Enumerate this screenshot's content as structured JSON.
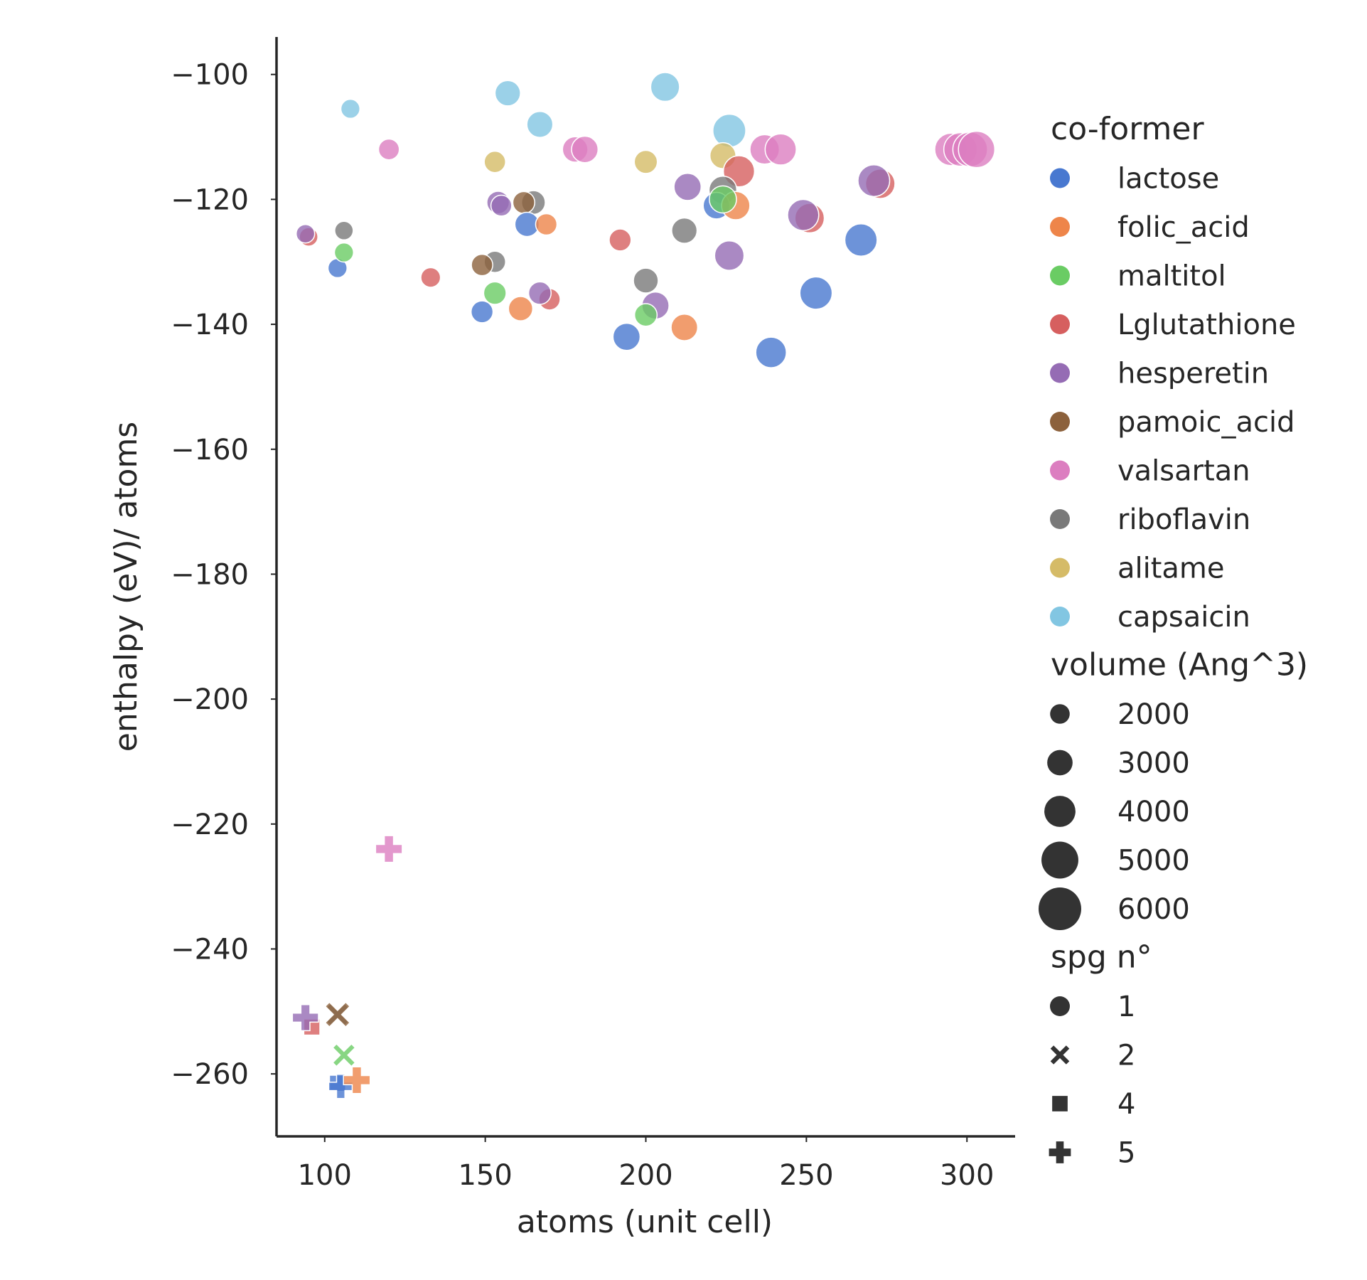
{
  "chart_data": {
    "type": "scatter",
    "xlabel": "atoms (unit cell)",
    "ylabel": "enthalpy (eV)/ atoms",
    "xlim": [
      85,
      315
    ],
    "ylim": [
      -270,
      -94
    ],
    "xticks": [
      100,
      150,
      200,
      250,
      300
    ],
    "yticks": [
      -100,
      -120,
      -140,
      -160,
      -180,
      -200,
      -220,
      -240,
      -260
    ],
    "grid": false,
    "legend_position": "right",
    "legend": {
      "hue_title": "co-former",
      "hue": [
        {
          "name": "lactose",
          "color": "#4878d0"
        },
        {
          "name": "folic_acid",
          "color": "#ee854a"
        },
        {
          "name": "maltitol",
          "color": "#6acc64"
        },
        {
          "name": "Lglutathione",
          "color": "#d65f5f"
        },
        {
          "name": "hesperetin",
          "color": "#956cb4"
        },
        {
          "name": "pamoic_acid",
          "color": "#8c613c"
        },
        {
          "name": "valsartan",
          "color": "#dc7ec0"
        },
        {
          "name": "riboflavin",
          "color": "#797979"
        },
        {
          "name": "alitame",
          "color": "#d5bb67"
        },
        {
          "name": "capsaicin",
          "color": "#82c6e2"
        }
      ],
      "size_title": "volume (Ang^3)",
      "sizes": [
        2000,
        3000,
        4000,
        5000,
        6000
      ],
      "style_title": "spg n°",
      "styles": [
        {
          "label": "1",
          "marker": "circle"
        },
        {
          "label": "2",
          "marker": "x"
        },
        {
          "label": "4",
          "marker": "square"
        },
        {
          "label": "5",
          "marker": "plus"
        }
      ]
    },
    "points": [
      {
        "x": 108,
        "y": -105.5,
        "cf": "capsaicin",
        "v": 1900,
        "spg": 1
      },
      {
        "x": 157,
        "y": -103,
        "cf": "capsaicin",
        "v": 3000,
        "spg": 1
      },
      {
        "x": 167,
        "y": -108,
        "cf": "capsaicin",
        "v": 3100,
        "spg": 1
      },
      {
        "x": 206,
        "y": -102,
        "cf": "capsaicin",
        "v": 3600,
        "spg": 1
      },
      {
        "x": 226,
        "y": -109,
        "cf": "capsaicin",
        "v": 4300,
        "spg": 1
      },
      {
        "x": 120,
        "y": -112,
        "cf": "valsartan",
        "v": 2200,
        "spg": 1
      },
      {
        "x": 178,
        "y": -112,
        "cf": "valsartan",
        "v": 3000,
        "spg": 1
      },
      {
        "x": 181,
        "y": -112,
        "cf": "valsartan",
        "v": 3200,
        "spg": 1
      },
      {
        "x": 237,
        "y": -112,
        "cf": "valsartan",
        "v": 3700,
        "spg": 1
      },
      {
        "x": 242,
        "y": -112,
        "cf": "valsartan",
        "v": 4000,
        "spg": 1
      },
      {
        "x": 295,
        "y": -112,
        "cf": "valsartan",
        "v": 4200,
        "spg": 1
      },
      {
        "x": 298,
        "y": -112,
        "cf": "valsartan",
        "v": 4400,
        "spg": 1
      },
      {
        "x": 301,
        "y": -112,
        "cf": "valsartan",
        "v": 4600,
        "spg": 1
      },
      {
        "x": 303,
        "y": -112,
        "cf": "valsartan",
        "v": 4900,
        "spg": 1
      },
      {
        "x": 153,
        "y": -114,
        "cf": "alitame",
        "v": 2300,
        "spg": 1
      },
      {
        "x": 200,
        "y": -114,
        "cf": "alitame",
        "v": 2600,
        "spg": 1
      },
      {
        "x": 224,
        "y": -113,
        "cf": "alitame",
        "v": 3100,
        "spg": 1
      },
      {
        "x": 95,
        "y": -126,
        "cf": "Lglutathione",
        "v": 1800,
        "spg": 1
      },
      {
        "x": 133,
        "y": -132.5,
        "cf": "Lglutathione",
        "v": 2000,
        "spg": 1
      },
      {
        "x": 192,
        "y": -126.5,
        "cf": "Lglutathione",
        "v": 2400,
        "spg": 1
      },
      {
        "x": 170,
        "y": -136,
        "cf": "Lglutathione",
        "v": 2300,
        "spg": 1
      },
      {
        "x": 229,
        "y": -115.5,
        "cf": "Lglutathione",
        "v": 4000,
        "spg": 1
      },
      {
        "x": 251,
        "y": -123,
        "cf": "Lglutathione",
        "v": 3700,
        "spg": 1
      },
      {
        "x": 273,
        "y": -117.5,
        "cf": "Lglutathione",
        "v": 3700,
        "spg": 1
      },
      {
        "x": 94,
        "y": -125.5,
        "cf": "hesperetin",
        "v": 1800,
        "spg": 1
      },
      {
        "x": 154,
        "y": -120.5,
        "cf": "hesperetin",
        "v": 2500,
        "spg": 1
      },
      {
        "x": 155,
        "y": -121,
        "cf": "hesperetin",
        "v": 2200,
        "spg": 1
      },
      {
        "x": 167,
        "y": -135,
        "cf": "hesperetin",
        "v": 2500,
        "spg": 1
      },
      {
        "x": 203,
        "y": -137,
        "cf": "hesperetin",
        "v": 3300,
        "spg": 1
      },
      {
        "x": 213,
        "y": -118,
        "cf": "hesperetin",
        "v": 3300,
        "spg": 1
      },
      {
        "x": 226,
        "y": -129,
        "cf": "hesperetin",
        "v": 3700,
        "spg": 1
      },
      {
        "x": 249,
        "y": -122.5,
        "cf": "hesperetin",
        "v": 4000,
        "spg": 1
      },
      {
        "x": 271,
        "y": -117,
        "cf": "hesperetin",
        "v": 4100,
        "spg": 1
      },
      {
        "x": 106,
        "y": -125,
        "cf": "riboflavin",
        "v": 1800,
        "spg": 1
      },
      {
        "x": 153,
        "y": -130,
        "cf": "riboflavin",
        "v": 2300,
        "spg": 1
      },
      {
        "x": 165,
        "y": -120.5,
        "cf": "riboflavin",
        "v": 2700,
        "spg": 1
      },
      {
        "x": 200,
        "y": -133,
        "cf": "riboflavin",
        "v": 2900,
        "spg": 1
      },
      {
        "x": 212,
        "y": -125,
        "cf": "riboflavin",
        "v": 3000,
        "spg": 1
      },
      {
        "x": 224,
        "y": -118.5,
        "cf": "riboflavin",
        "v": 3400,
        "spg": 1
      },
      {
        "x": 149,
        "y": -130.5,
        "cf": "pamoic_acid",
        "v": 2300,
        "spg": 1
      },
      {
        "x": 162,
        "y": -120.5,
        "cf": "pamoic_acid",
        "v": 2400,
        "spg": 1
      },
      {
        "x": 104,
        "y": -131,
        "cf": "lactose",
        "v": 1900,
        "spg": 1
      },
      {
        "x": 149,
        "y": -138,
        "cf": "lactose",
        "v": 2400,
        "spg": 1
      },
      {
        "x": 163,
        "y": -124,
        "cf": "lactose",
        "v": 2800,
        "spg": 1
      },
      {
        "x": 194,
        "y": -142,
        "cf": "lactose",
        "v": 3300,
        "spg": 1
      },
      {
        "x": 222,
        "y": -121,
        "cf": "lactose",
        "v": 3200,
        "spg": 1
      },
      {
        "x": 239,
        "y": -144.5,
        "cf": "lactose",
        "v": 3900,
        "spg": 1
      },
      {
        "x": 253,
        "y": -135,
        "cf": "lactose",
        "v": 4200,
        "spg": 1
      },
      {
        "x": 267,
        "y": -126.5,
        "cf": "lactose",
        "v": 4200,
        "spg": 1
      },
      {
        "x": 161,
        "y": -137.5,
        "cf": "folic_acid",
        "v": 2800,
        "spg": 1
      },
      {
        "x": 169,
        "y": -124,
        "cf": "folic_acid",
        "v": 2300,
        "spg": 1
      },
      {
        "x": 212,
        "y": -140.5,
        "cf": "folic_acid",
        "v": 3200,
        "spg": 1
      },
      {
        "x": 228,
        "y": -121,
        "cf": "folic_acid",
        "v": 3500,
        "spg": 1
      },
      {
        "x": 106,
        "y": -128.5,
        "cf": "maltitol",
        "v": 1900,
        "spg": 1
      },
      {
        "x": 153,
        "y": -135,
        "cf": "maltitol",
        "v": 2500,
        "spg": 1
      },
      {
        "x": 200,
        "y": -138.5,
        "cf": "maltitol",
        "v": 2500,
        "spg": 1
      },
      {
        "x": 224,
        "y": -120,
        "cf": "maltitol",
        "v": 3300,
        "spg": 1
      },
      {
        "x": 120,
        "y": -224,
        "cf": "valsartan",
        "v": 2800,
        "spg": 5
      },
      {
        "x": 96,
        "y": -252.5,
        "cf": "Lglutathione",
        "v": 2200,
        "spg": 4
      },
      {
        "x": 94,
        "y": -251,
        "cf": "hesperetin",
        "v": 2700,
        "spg": 5
      },
      {
        "x": 104,
        "y": -250.5,
        "cf": "riboflavin",
        "v": 2600,
        "spg": 2
      },
      {
        "x": 104,
        "y": -250.5,
        "cf": "pamoic_acid",
        "v": 3100,
        "spg": 2
      },
      {
        "x": 106,
        "y": -257,
        "cf": "maltitol",
        "v": 2700,
        "spg": 2
      },
      {
        "x": 104,
        "y": -261.5,
        "cf": "lactose",
        "v": 2200,
        "spg": 4
      },
      {
        "x": 105,
        "y": -262,
        "cf": "lactose",
        "v": 2400,
        "spg": 5
      },
      {
        "x": 110,
        "y": -261,
        "cf": "folic_acid",
        "v": 2800,
        "spg": 5
      }
    ]
  }
}
